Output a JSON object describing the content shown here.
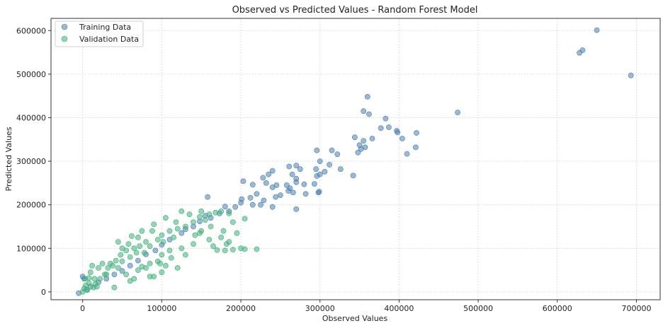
{
  "chart_data": {
    "type": "scatter",
    "title": "Observed vs Predicted Values - Random Forest Model",
    "xlabel": "Observed Values",
    "ylabel": "Predicted Values",
    "xlim": [
      -40000,
      730000
    ],
    "ylim": [
      -18000,
      628000
    ],
    "x_ticks": [
      0,
      100000,
      200000,
      300000,
      400000,
      500000,
      600000,
      700000
    ],
    "y_ticks": [
      0,
      100000,
      200000,
      300000,
      400000,
      500000,
      600000
    ],
    "grid": true,
    "legend": {
      "placement": "top-left",
      "entries": [
        "Training Data",
        "Validation Data"
      ]
    },
    "series": [
      {
        "name": "Training Data",
        "color": "#4a7fb0",
        "points": [
          [
            -5000,
            -3000
          ],
          [
            650000,
            601000
          ],
          [
            632000,
            555000
          ],
          [
            628000,
            549000
          ],
          [
            693000,
            497000
          ],
          [
            474000,
            412000
          ],
          [
            360000,
            448000
          ],
          [
            355000,
            415000
          ],
          [
            362000,
            408000
          ],
          [
            383000,
            398000
          ],
          [
            387000,
            378000
          ],
          [
            377000,
            376000
          ],
          [
            422000,
            365000
          ],
          [
            397000,
            370000
          ],
          [
            398000,
            366000
          ],
          [
            404000,
            352000
          ],
          [
            366000,
            352000
          ],
          [
            344000,
            355000
          ],
          [
            355000,
            347000
          ],
          [
            350000,
            337000
          ],
          [
            352000,
            328000
          ],
          [
            357000,
            332000
          ],
          [
            348000,
            320000
          ],
          [
            315000,
            325000
          ],
          [
            296000,
            325000
          ],
          [
            421000,
            332000
          ],
          [
            410000,
            317000
          ],
          [
            322000,
            316000
          ],
          [
            300000,
            300000
          ],
          [
            312000,
            292000
          ],
          [
            326000,
            282000
          ],
          [
            295000,
            282000
          ],
          [
            296000,
            266000
          ],
          [
            300000,
            270000
          ],
          [
            306000,
            276000
          ],
          [
            270000,
            290000
          ],
          [
            261000,
            288000
          ],
          [
            275000,
            282000
          ],
          [
            265000,
            270000
          ],
          [
            270000,
            260000
          ],
          [
            280000,
            247000
          ],
          [
            293000,
            248000
          ],
          [
            262000,
            238000
          ],
          [
            270000,
            252000
          ],
          [
            342000,
            267000
          ],
          [
            240000,
            278000
          ],
          [
            235000,
            270000
          ],
          [
            228000,
            262000
          ],
          [
            232000,
            250000
          ],
          [
            203000,
            254000
          ],
          [
            215000,
            246000
          ],
          [
            258000,
            245000
          ],
          [
            245000,
            245000
          ],
          [
            240000,
            240000
          ],
          [
            299000,
            230000
          ],
          [
            298000,
            228000
          ],
          [
            260000,
            232000
          ],
          [
            266000,
            228000
          ],
          [
            282000,
            225000
          ],
          [
            250000,
            222000
          ],
          [
            220000,
            225000
          ],
          [
            244000,
            218000
          ],
          [
            229000,
            210000
          ],
          [
            201000,
            213000
          ],
          [
            212000,
            216000
          ],
          [
            158000,
            218000
          ],
          [
            200000,
            205000
          ],
          [
            225000,
            200000
          ],
          [
            240000,
            195000
          ],
          [
            193000,
            195000
          ],
          [
            270000,
            190000
          ],
          [
            215000,
            200000
          ],
          [
            180000,
            196000
          ],
          [
            185000,
            185000
          ],
          [
            173000,
            180000
          ],
          [
            162000,
            170000
          ],
          [
            155000,
            175000
          ],
          [
            148000,
            162000
          ],
          [
            140000,
            150000
          ],
          [
            130000,
            144000
          ],
          [
            125000,
            135000
          ],
          [
            110000,
            120000
          ],
          [
            100000,
            108000
          ],
          [
            92000,
            95000
          ],
          [
            80000,
            86000
          ],
          [
            70000,
            72000
          ],
          [
            60000,
            60000
          ],
          [
            50000,
            48000
          ],
          [
            40000,
            40000
          ],
          [
            30000,
            30000
          ],
          [
            20000,
            22000
          ],
          [
            10000,
            12000
          ],
          [
            5000,
            5000
          ],
          [
            2000,
            30000
          ],
          [
            0,
            35000
          ]
        ]
      },
      {
        "name": "Validation Data",
        "color": "#3fb07a",
        "points": [
          [
            0,
            0
          ],
          [
            2000,
            8000
          ],
          [
            4000,
            15000
          ],
          [
            3000,
            30000
          ],
          [
            8000,
            20000
          ],
          [
            10000,
            45000
          ],
          [
            12000,
            60000
          ],
          [
            15000,
            30000
          ],
          [
            18000,
            12000
          ],
          [
            20000,
            55000
          ],
          [
            25000,
            65000
          ],
          [
            30000,
            40000
          ],
          [
            35000,
            65000
          ],
          [
            40000,
            10000
          ],
          [
            45000,
            55000
          ],
          [
            50000,
            70000
          ],
          [
            55000,
            95000
          ],
          [
            58000,
            110000
          ],
          [
            60000,
            80000
          ],
          [
            62000,
            128000
          ],
          [
            65000,
            100000
          ],
          [
            70000,
            125000
          ],
          [
            75000,
            140000
          ],
          [
            78000,
            90000
          ],
          [
            80000,
            115000
          ],
          [
            85000,
            105000
          ],
          [
            88000,
            140000
          ],
          [
            90000,
            155000
          ],
          [
            95000,
            120000
          ],
          [
            100000,
            130000
          ],
          [
            105000,
            170000
          ],
          [
            110000,
            140000
          ],
          [
            115000,
            125000
          ],
          [
            118000,
            160000
          ],
          [
            120000,
            145000
          ],
          [
            125000,
            185000
          ],
          [
            130000,
            150000
          ],
          [
            135000,
            178000
          ],
          [
            140000,
            160000
          ],
          [
            142000,
            130000
          ],
          [
            148000,
            172000
          ],
          [
            150000,
            185000
          ],
          [
            155000,
            165000
          ],
          [
            160000,
            178000
          ],
          [
            162000,
            150000
          ],
          [
            168000,
            182000
          ],
          [
            175000,
            185000
          ],
          [
            185000,
            180000
          ],
          [
            190000,
            160000
          ],
          [
            170000,
            96000
          ],
          [
            180000,
            95000
          ],
          [
            190000,
            97000
          ],
          [
            200000,
            100000
          ],
          [
            205000,
            98000
          ],
          [
            195000,
            135000
          ],
          [
            205000,
            168000
          ],
          [
            185000,
            115000
          ],
          [
            150000,
            140000
          ],
          [
            160000,
            120000
          ],
          [
            140000,
            110000
          ],
          [
            110000,
            95000
          ],
          [
            100000,
            85000
          ],
          [
            95000,
            70000
          ],
          [
            85000,
            65000
          ],
          [
            80000,
            55000
          ],
          [
            75000,
            58000
          ],
          [
            70000,
            50000
          ],
          [
            65000,
            30000
          ],
          [
            60000,
            25000
          ],
          [
            55000,
            40000
          ],
          [
            100000,
            45000
          ],
          [
            90000,
            35000
          ],
          [
            85000,
            35000
          ],
          [
            120000,
            55000
          ],
          [
            130000,
            85000
          ],
          [
            220000,
            98000
          ],
          [
            165000,
            105000
          ],
          [
            175000,
            125000
          ],
          [
            178000,
            140000
          ],
          [
            182000,
            110000
          ],
          [
            148000,
            135000
          ],
          [
            125000,
            100000
          ],
          [
            112000,
            78000
          ],
          [
            105000,
            60000
          ],
          [
            98000,
            65000
          ],
          [
            102000,
            115000
          ],
          [
            68000,
            90000
          ],
          [
            72000,
            105000
          ],
          [
            48000,
            85000
          ],
          [
            42000,
            72000
          ],
          [
            38000,
            60000
          ],
          [
            32000,
            55000
          ],
          [
            28000,
            40000
          ],
          [
            22000,
            30000
          ],
          [
            16000,
            18000
          ],
          [
            14000,
            10000
          ],
          [
            6000,
            4000
          ],
          [
            8000,
            32000
          ],
          [
            50000,
            100000
          ],
          [
            45000,
            115000
          ]
        ]
      }
    ]
  }
}
